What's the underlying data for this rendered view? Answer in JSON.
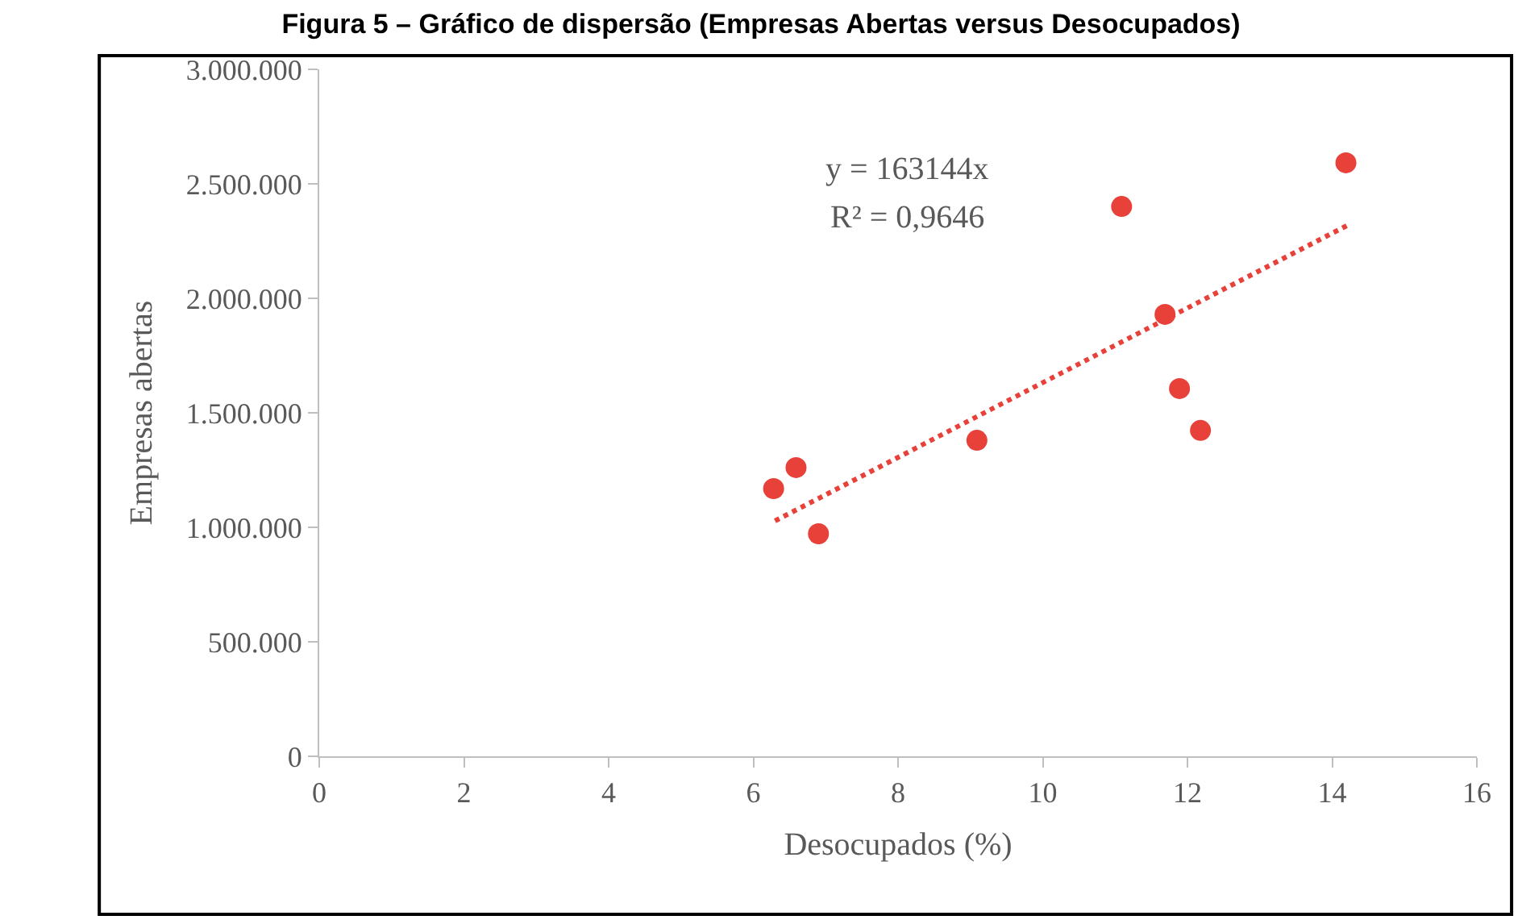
{
  "chart_data": {
    "type": "scatter",
    "title": "Figura 5 – Gráfico de dispersão (Empresas Abertas versus Desocupados)",
    "xlabel": "Desocupados (%)",
    "ylabel": "Empresas abertas",
    "series": [
      {
        "color": "#e8413a",
        "marker": "circle",
        "x": [
          6.28,
          6.59,
          6.9,
          9.09,
          11.09,
          11.69,
          11.89,
          12.18,
          14.19
        ],
        "values": [
          1169000,
          1261000,
          972000,
          1380000,
          2401000,
          1930000,
          1606000,
          1423000,
          2592000
        ]
      },
      {
        "type": "line",
        "color": "#e8413a",
        "line_style": "dotted",
        "marker": "none",
        "x": [
          6.3,
          14.2
        ],
        "values": [
          1028000,
          2317000
        ]
      }
    ],
    "annotations": [
      "y = 163144x",
      "R² = 0,9646"
    ],
    "xlim": [
      0,
      16
    ],
    "xticks": [
      0,
      2,
      4,
      6,
      8,
      10,
      12,
      14,
      16
    ],
    "ylim": [
      0,
      3000000
    ],
    "yticks": [
      {
        "value": 0,
        "label": "0"
      },
      {
        "value": 500000,
        "label": "500.000"
      },
      {
        "value": 1000000,
        "label": "1.000.000"
      },
      {
        "value": 1500000,
        "label": "1.500.000"
      },
      {
        "value": 2000000,
        "label": "2.000.000"
      },
      {
        "value": 2500000,
        "label": "2.500.000"
      },
      {
        "value": 3000000,
        "label": "3.000.000"
      }
    ],
    "tick_labels": "xy"
  }
}
